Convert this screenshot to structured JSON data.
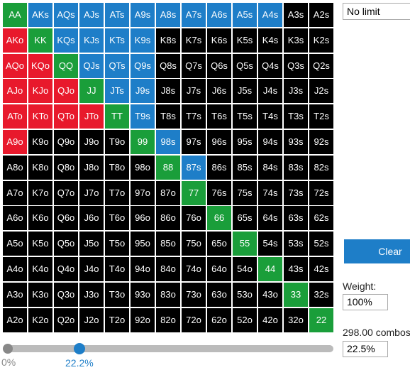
{
  "grid": {
    "rows": [
      {
        "cells": [
          "AA",
          "AKs",
          "AQs",
          "AJs",
          "ATs",
          "A9s",
          "A8s",
          "A7s",
          "A6s",
          "A5s",
          "A4s",
          "A3s",
          "A2s"
        ],
        "colors": [
          "#1a9e3a",
          "#1e7ec8",
          "#1e7ec8",
          "#1e7ec8",
          "#1e7ec8",
          "#1e7ec8",
          "#1e7ec8",
          "#1e7ec8",
          "#1e7ec8",
          "#1e7ec8",
          "#1e7ec8",
          "#000000",
          "#000000"
        ]
      },
      {
        "cells": [
          "AKo",
          "KK",
          "KQs",
          "KJs",
          "KTs",
          "K9s",
          "K8s",
          "K7s",
          "K6s",
          "K5s",
          "K4s",
          "K3s",
          "K2s"
        ],
        "colors": [
          "#e8192c",
          "#1a9e3a",
          "#1e7ec8",
          "#1e7ec8",
          "#1e7ec8",
          "#1e7ec8",
          "#000000",
          "#000000",
          "#000000",
          "#000000",
          "#000000",
          "#000000",
          "#000000"
        ]
      },
      {
        "cells": [
          "AQo",
          "KQo",
          "QQ",
          "QJs",
          "QTs",
          "Q9s",
          "Q8s",
          "Q7s",
          "Q6s",
          "Q5s",
          "Q4s",
          "Q3s",
          "Q2s"
        ],
        "colors": [
          "#e8192c",
          "#e8192c",
          "#1a9e3a",
          "#1e7ec8",
          "#1e7ec8",
          "#1e7ec8",
          "#000000",
          "#000000",
          "#000000",
          "#000000",
          "#000000",
          "#000000",
          "#000000"
        ]
      },
      {
        "cells": [
          "AJo",
          "KJo",
          "QJo",
          "JJ",
          "JTs",
          "J9s",
          "J8s",
          "J7s",
          "J6s",
          "J5s",
          "J4s",
          "J3s",
          "J2s"
        ],
        "colors": [
          "#e8192c",
          "#e8192c",
          "#e8192c",
          "#1a9e3a",
          "#1e7ec8",
          "#1e7ec8",
          "#000000",
          "#000000",
          "#000000",
          "#000000",
          "#000000",
          "#000000",
          "#000000"
        ]
      },
      {
        "cells": [
          "ATo",
          "KTo",
          "QTo",
          "JTo",
          "TT",
          "T9s",
          "T8s",
          "T7s",
          "T6s",
          "T5s",
          "T4s",
          "T3s",
          "T2s"
        ],
        "colors": [
          "#e8192c",
          "#e8192c",
          "#e8192c",
          "#e8192c",
          "#1a9e3a",
          "#1e7ec8",
          "#000000",
          "#000000",
          "#000000",
          "#000000",
          "#000000",
          "#000000",
          "#000000"
        ]
      },
      {
        "cells": [
          "A9o",
          "K9o",
          "Q9o",
          "J9o",
          "T9o",
          "99",
          "98s",
          "97s",
          "96s",
          "95s",
          "94s",
          "93s",
          "92s"
        ],
        "colors": [
          "#e8192c",
          "#000000",
          "#000000",
          "#000000",
          "#000000",
          "#1a9e3a",
          "#1e7ec8",
          "#000000",
          "#000000",
          "#000000",
          "#000000",
          "#000000",
          "#000000"
        ]
      },
      {
        "cells": [
          "A8o",
          "K8o",
          "Q8o",
          "J8o",
          "T8o",
          "98o",
          "88",
          "87s",
          "86s",
          "85s",
          "84s",
          "83s",
          "82s"
        ],
        "colors": [
          "#000000",
          "#000000",
          "#000000",
          "#000000",
          "#000000",
          "#000000",
          "#1a9e3a",
          "#1e7ec8",
          "#000000",
          "#000000",
          "#000000",
          "#000000",
          "#000000"
        ]
      },
      {
        "cells": [
          "A7o",
          "K7o",
          "Q7o",
          "J7o",
          "T7o",
          "97o",
          "87o",
          "77",
          "76s",
          "75s",
          "74s",
          "73s",
          "72s"
        ],
        "colors": [
          "#000000",
          "#000000",
          "#000000",
          "#000000",
          "#000000",
          "#000000",
          "#000000",
          "#1a9e3a",
          "#000000",
          "#000000",
          "#000000",
          "#000000",
          "#000000"
        ]
      },
      {
        "cells": [
          "A6o",
          "K6o",
          "Q6o",
          "J6o",
          "T6o",
          "96o",
          "86o",
          "76o",
          "66",
          "65s",
          "64s",
          "63s",
          "62s"
        ],
        "colors": [
          "#000000",
          "#000000",
          "#000000",
          "#000000",
          "#000000",
          "#000000",
          "#000000",
          "#000000",
          "#1a9e3a",
          "#000000",
          "#000000",
          "#000000",
          "#000000"
        ]
      },
      {
        "cells": [
          "A5o",
          "K5o",
          "Q5o",
          "J5o",
          "T5o",
          "95o",
          "85o",
          "75o",
          "65o",
          "55",
          "54s",
          "53s",
          "52s"
        ],
        "colors": [
          "#000000",
          "#000000",
          "#000000",
          "#000000",
          "#000000",
          "#000000",
          "#000000",
          "#000000",
          "#000000",
          "#1a9e3a",
          "#000000",
          "#000000",
          "#000000"
        ]
      },
      {
        "cells": [
          "A4o",
          "K4o",
          "Q4o",
          "J4o",
          "T4o",
          "94o",
          "84o",
          "74o",
          "64o",
          "54o",
          "44",
          "43s",
          "42s"
        ],
        "colors": [
          "#000000",
          "#000000",
          "#000000",
          "#000000",
          "#000000",
          "#000000",
          "#000000",
          "#000000",
          "#000000",
          "#000000",
          "#1a9e3a",
          "#000000",
          "#000000"
        ]
      },
      {
        "cells": [
          "A3o",
          "K3o",
          "Q3o",
          "J3o",
          "T3o",
          "93o",
          "83o",
          "73o",
          "63o",
          "53o",
          "43o",
          "33",
          "32s"
        ],
        "colors": [
          "#000000",
          "#000000",
          "#000000",
          "#000000",
          "#000000",
          "#000000",
          "#000000",
          "#000000",
          "#000000",
          "#000000",
          "#000000",
          "#1a9e3a",
          "#000000"
        ]
      },
      {
        "cells": [
          "A2o",
          "K2o",
          "Q2o",
          "J2o",
          "T2o",
          "92o",
          "82o",
          "72o",
          "62o",
          "52o",
          "42o",
          "32o",
          "22"
        ],
        "colors": [
          "#000000",
          "#000000",
          "#000000",
          "#000000",
          "#000000",
          "#000000",
          "#000000",
          "#000000",
          "#000000",
          "#000000",
          "#000000",
          "#000000",
          "#1a9e3a"
        ]
      }
    ]
  },
  "side": {
    "game": "No limit",
    "clear": "Clear",
    "weight_label": "Weight:",
    "weight": "100%",
    "combos": "298.00 combos",
    "percent": "22.5%"
  },
  "slider": {
    "min_label": "0%",
    "value_label": "22.2%"
  }
}
